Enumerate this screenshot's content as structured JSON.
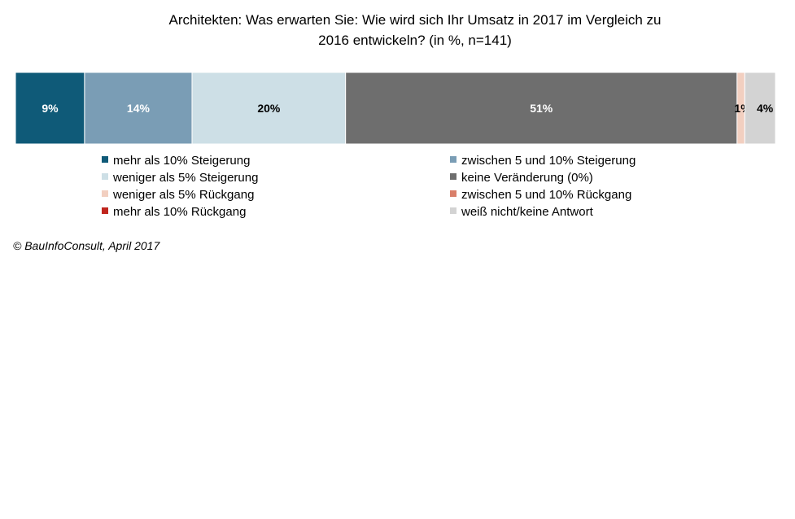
{
  "title": {
    "line1": "Architekten:  Was erwarten Sie: Wie wird sich Ihr Umsatz  in 2017 im Vergleich zu",
    "line2": "2016 entwickeln? (in %, n=141)"
  },
  "footer": "© BauInfoConsult, April 2017",
  "chart_data": {
    "type": "bar",
    "orientation": "horizontal-stacked-100",
    "title": "Architekten:  Was erwarten Sie: Wie wird sich Ihr Umsatz  in 2017 im Vergleich zu 2016 entwickeln? (in %, n=141)",
    "categories": [
      ""
    ],
    "legend_position": "bottom",
    "series": [
      {
        "name": "mehr als 10% Steigerung",
        "values": [
          9
        ],
        "label": "9%",
        "color": "#0f5a78",
        "label_color": "#ffffff"
      },
      {
        "name": "zwischen 5 und 10% Steigerung",
        "values": [
          14
        ],
        "label": "14%",
        "color": "#7a9db5",
        "label_color": "#ffffff"
      },
      {
        "name": "weniger als 5% Steigerung",
        "values": [
          20
        ],
        "label": "20%",
        "color": "#cddfe6",
        "label_color": "#000000"
      },
      {
        "name": "keine Veränderung (0%)",
        "values": [
          51
        ],
        "label": "51%",
        "color": "#6e6e6e",
        "label_color": "#ffffff"
      },
      {
        "name": "weniger als 5% Rückgang",
        "values": [
          1
        ],
        "label": "1%",
        "color": "#f2cfc0",
        "label_color": "#000000"
      },
      {
        "name": "zwischen 5 und 10% Rückgang",
        "values": [
          0
        ],
        "label": "",
        "color": "#d97f6a",
        "label_color": "#000000"
      },
      {
        "name": "mehr als 10% Rückgang",
        "values": [
          0
        ],
        "label": "",
        "color": "#c0251d",
        "label_color": "#000000"
      },
      {
        "name": "weiß nicht/keine Antwort",
        "values": [
          4
        ],
        "label": "4%",
        "color": "#d3d3d3",
        "label_color": "#000000"
      }
    ]
  }
}
